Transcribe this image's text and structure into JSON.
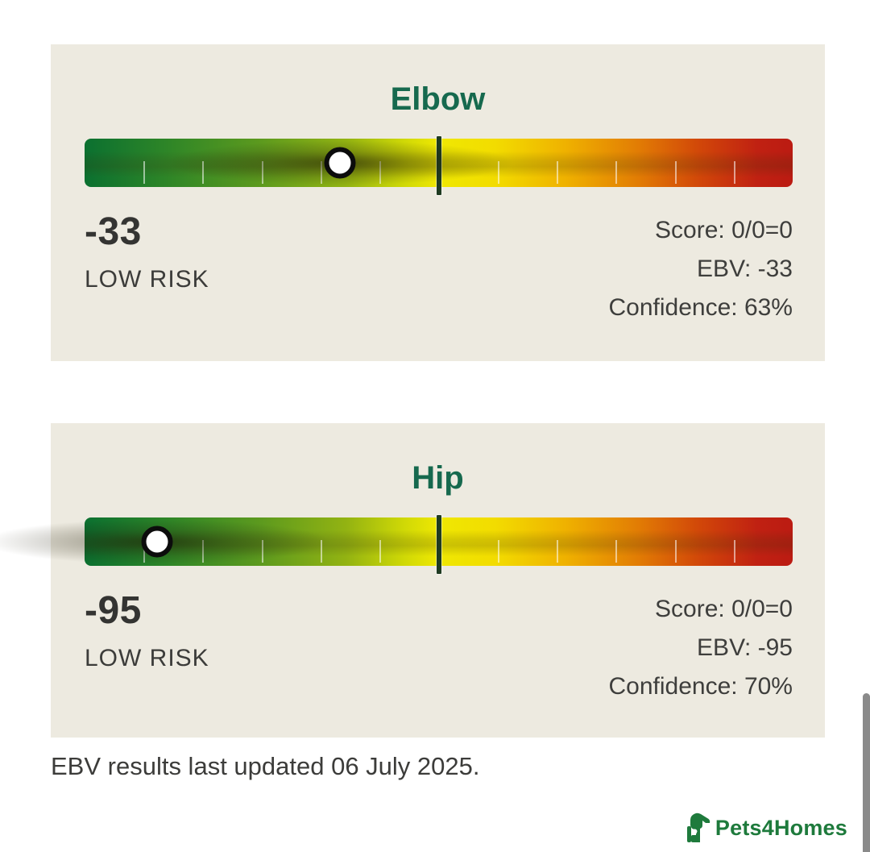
{
  "cards": [
    {
      "title": "Elbow",
      "value": "-33",
      "risk_label": "LOW RISK",
      "thumb_percent": 36.06,
      "stats": [
        "Score: 0/0=0",
        "EBV: -33",
        "Confidence: 63%"
      ]
    },
    {
      "title": "Hip",
      "value": "-95",
      "risk_label": "LOW RISK",
      "thumb_percent": 10.24,
      "stats": [
        "Score: 0/0=0",
        "EBV: -95",
        "Confidence: 70%"
      ]
    }
  ],
  "footer": {
    "updated_text": "EBV results last updated 06 July 2025."
  },
  "brand": {
    "name": "Pets4Homes"
  },
  "colors": {
    "card_background": "#edeae0",
    "title_green": "#16694e",
    "brand_green": "#1e7a3c",
    "text_dark": "#3c3c3a",
    "gauge_gradient": [
      "#0b7030",
      "#2f8627",
      "#5d9a1e",
      "#93b312",
      "#cfd806",
      "#efe802",
      "#f2dc00",
      "#efb100",
      "#e27d04",
      "#d14609",
      "#c02112",
      "#bb1b12"
    ],
    "center_line": "#1f3b21"
  },
  "gauge": {
    "segments": 12
  }
}
